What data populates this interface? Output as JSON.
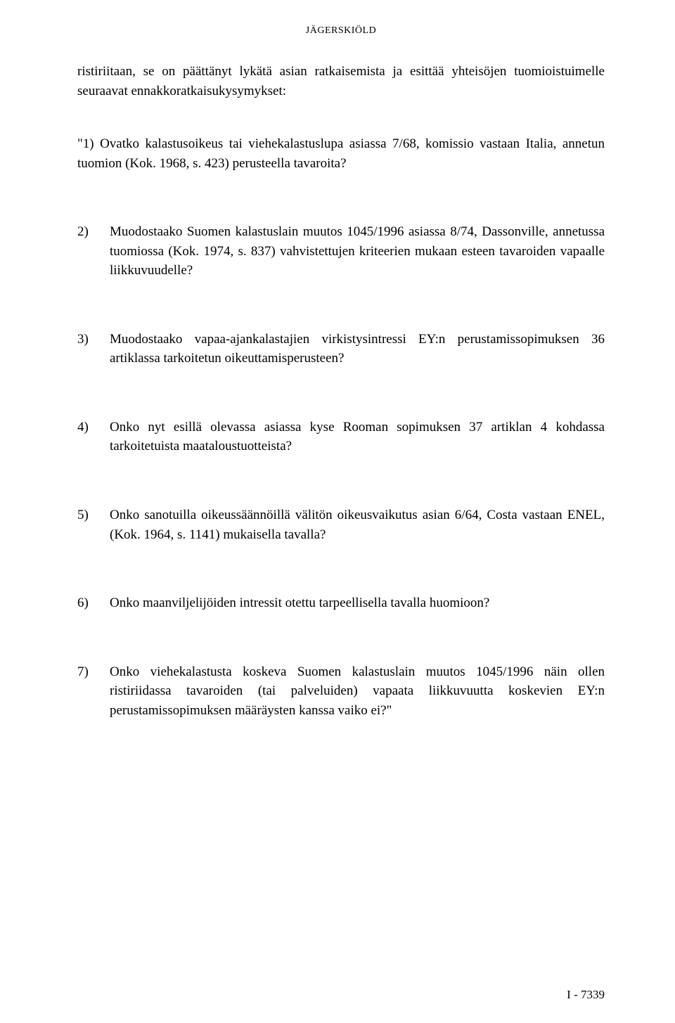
{
  "header": {
    "title": "JÄGERSKIÖLD"
  },
  "intro": {
    "text": "ristiriitaan, se on päättänyt lykätä asian ratkaisemista ja esittää yhteisöjen tuomioistuimelle seuraavat ennakkoratkaisukysymykset:"
  },
  "questions": [
    {
      "number": "\"1)",
      "text": "Ovatko kalastusoikeus tai viehekalastuslupa asiassa 7/68, komissio vastaan Italia, annetun tuomion (Kok. 1968, s. 423) perusteella tavaroita?"
    },
    {
      "number": "2)",
      "text": "Muodostaako Suomen kalastuslain muutos 1045/1996 asiassa 8/74, Dassonville, annetussa tuomiossa (Kok. 1974, s. 837) vahvistettujen kriteerien mukaan esteen tavaroiden vapaalle liikkuvuudelle?"
    },
    {
      "number": "3)",
      "text": "Muodostaako vapaa-ajankalastajien virkistysintressi EY:n perustamissopimuksen 36 artiklassa tarkoitetun oikeuttamisperusteen?"
    },
    {
      "number": "4)",
      "text": "Onko nyt esillä olevassa asiassa kyse Rooman sopimuksen 37 artiklan 4 kohdassa tarkoitetuista maataloustuotteista?"
    },
    {
      "number": "5)",
      "text": "Onko sanotuilla oikeussäännöillä välitön oikeusvaikutus asian 6/64, Costa vastaan ENEL, (Kok. 1964, s. 1141) mukaisella tavalla?"
    },
    {
      "number": "6)",
      "text": "Onko maanviljelijöiden intressit otettu tarpeellisella tavalla huomioon?"
    },
    {
      "number": "7)",
      "text": "Onko viehekalastusta koskeva Suomen kalastuslain muutos 1045/1996 näin ollen ristiriidassa tavaroiden (tai palveluiden) vapaata liikkuvuutta koskevien EY:n perustamissopimuksen määräysten kanssa vaiko ei?\""
    }
  ],
  "pageNumber": "I - 7339"
}
